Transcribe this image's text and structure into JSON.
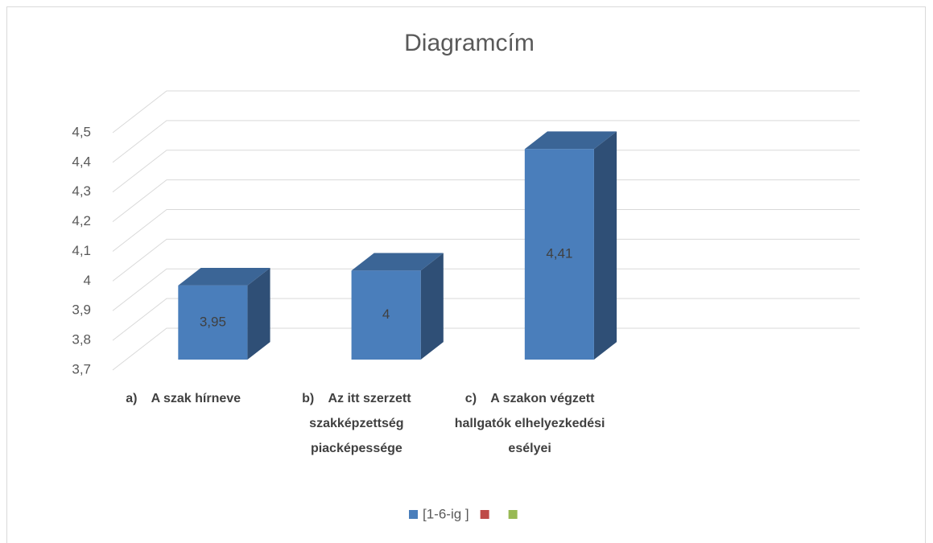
{
  "chart_data": {
    "type": "bar3d",
    "title": "Diagramcím",
    "categories": [
      "a)    A szak hírneve",
      "b)    Az itt szerzett szakképzettség piacképessége",
      "c)    A szakon végzett hallgatók elhelyezkedési esélyei",
      null
    ],
    "series": [
      {
        "name": "[1-6-ig ]",
        "color": "#4a7ebb",
        "values": [
          3.95,
          4,
          4.41,
          null
        ],
        "value_labels": [
          "3,95",
          "4",
          "4,41",
          null
        ]
      },
      {
        "name": null,
        "color": "#be4b48",
        "values": [
          null,
          null,
          null,
          null
        ]
      },
      {
        "name": null,
        "color": "#98b954",
        "values": [
          null,
          null,
          null,
          null
        ]
      }
    ],
    "ylim": [
      3.7,
      4.5
    ],
    "yticks": [
      {
        "value": 3.7,
        "label": "3,7"
      },
      {
        "value": 3.8,
        "label": "3,8"
      },
      {
        "value": 3.9,
        "label": "3,9"
      },
      4,
      {
        "value": 4.1,
        "label": "4,1"
      },
      {
        "value": 4.2,
        "label": "4,2"
      },
      {
        "value": 4.3,
        "label": "4,3"
      },
      {
        "value": 4.4,
        "label": "4,4"
      },
      {
        "value": 4.5,
        "label": "4,5"
      }
    ],
    "grid": true,
    "legend": "bottom"
  }
}
